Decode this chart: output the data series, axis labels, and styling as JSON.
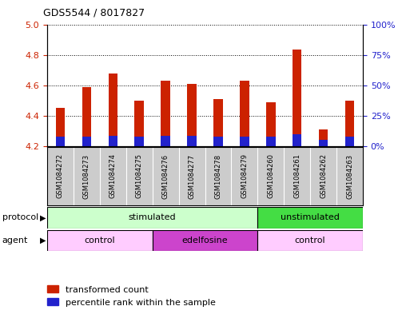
{
  "title": "GDS5544 / 8017827",
  "samples": [
    "GSM1084272",
    "GSM1084273",
    "GSM1084274",
    "GSM1084275",
    "GSM1084276",
    "GSM1084277",
    "GSM1084278",
    "GSM1084279",
    "GSM1084260",
    "GSM1084261",
    "GSM1084262",
    "GSM1084263"
  ],
  "red_tops": [
    4.45,
    4.59,
    4.68,
    4.5,
    4.63,
    4.61,
    4.51,
    4.63,
    4.49,
    4.84,
    4.31,
    4.5
  ],
  "blue_tops": [
    4.26,
    4.26,
    4.27,
    4.26,
    4.27,
    4.27,
    4.26,
    4.26,
    4.26,
    4.28,
    4.24,
    4.26
  ],
  "base": 4.2,
  "ylim_left": [
    4.2,
    5.0
  ],
  "yticks_left": [
    4.2,
    4.4,
    4.6,
    4.8,
    5.0
  ],
  "ylim_right": [
    0,
    100
  ],
  "yticks_right": [
    0,
    25,
    50,
    75,
    100
  ],
  "ytick_labels_right": [
    "0%",
    "25%",
    "50%",
    "75%",
    "100%"
  ],
  "bar_width": 0.35,
  "red_color": "#cc2200",
  "blue_color": "#2222cc",
  "bg_color": "#ffffff",
  "grid_color": "#000000",
  "label_gray": "#cccccc",
  "protocol_stim_color": "#ccffcc",
  "protocol_unstim_color": "#44dd44",
  "agent_control_color": "#ffccff",
  "agent_edelfosine_color": "#cc44cc",
  "tick_color_left": "#cc2200",
  "tick_color_right": "#2222cc",
  "title_fontsize": 9,
  "axis_fontsize": 8,
  "legend_fontsize": 8,
  "sample_fontsize": 6
}
